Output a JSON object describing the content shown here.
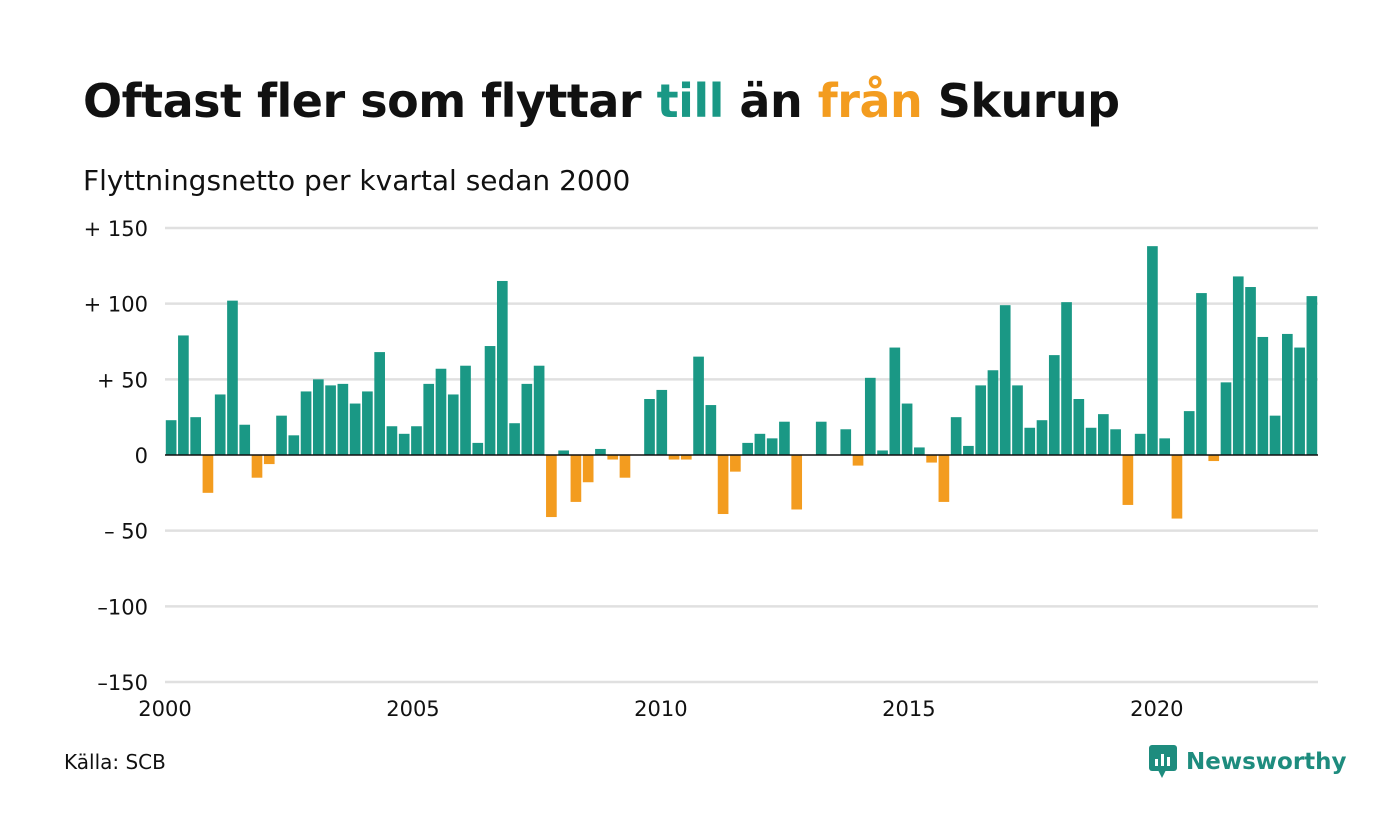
{
  "title": {
    "part1": "Oftast fler som flyttar ",
    "highlight_in": "till",
    "part2": " än ",
    "highlight_out": "från",
    "part3": " Skurup"
  },
  "subtitle": "Flyttningsnetto per kvartal sedan 2000",
  "source": "Källa: SCB",
  "logo": {
    "text": "Newsworthy",
    "icon": "chart-bubble-icon"
  },
  "colors": {
    "positive": "#1a9885",
    "negative": "#f39c1f",
    "grid": "#e0e0e0",
    "axis": "#111111"
  },
  "chart_data": {
    "type": "bar",
    "xlabel": "",
    "ylabel": "",
    "ylim": [
      -150,
      150
    ],
    "yticks": [
      150,
      100,
      50,
      0,
      -50,
      -100,
      -150
    ],
    "ytick_labels": [
      "+ 150",
      "+ 100",
      "+  50",
      "0",
      "– 50",
      "–100",
      "–150"
    ],
    "xlim": [
      2000,
      2023.25
    ],
    "xticks": [
      2000,
      2005,
      2010,
      2015,
      2020
    ],
    "xtick_labels": [
      "2000",
      "2005",
      "2010",
      "2015",
      "2020"
    ],
    "grid": true,
    "period": "quarter",
    "start_year": 2000,
    "values": [
      23,
      79,
      25,
      -25,
      40,
      102,
      20,
      -15,
      -6,
      26,
      13,
      42,
      50,
      46,
      47,
      34,
      42,
      68,
      19,
      14,
      19,
      47,
      57,
      40,
      59,
      8,
      72,
      115,
      21,
      47,
      59,
      -41,
      3,
      -31,
      -18,
      4,
      -3,
      -15,
      0,
      37,
      43,
      -3,
      -3,
      65,
      33,
      -39,
      -11,
      8,
      14,
      11,
      22,
      -36,
      0,
      22,
      0,
      17,
      -7,
      51,
      3,
      71,
      34,
      5,
      -5,
      -31,
      25,
      6,
      46,
      56,
      99,
      46,
      18,
      23,
      66,
      101,
      37,
      18,
      27,
      17,
      -33,
      14,
      138,
      11,
      -42,
      29,
      107,
      -4,
      48,
      118,
      111,
      78,
      26,
      80,
      71,
      105
    ]
  }
}
